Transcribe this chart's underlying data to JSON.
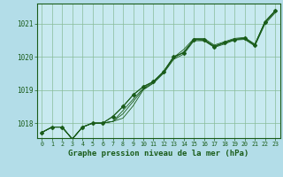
{
  "title": "Graphe pression niveau de la mer (hPa)",
  "bg_color": "#b3dde8",
  "plot_bg_color": "#c8eaf0",
  "line_color": "#1a5c1a",
  "grid_color": "#88bb99",
  "text_color": "#1a5c1a",
  "xlim": [
    -0.5,
    23.5
  ],
  "ylim": [
    1017.55,
    1021.6
  ],
  "yticks": [
    1018,
    1019,
    1020,
    1021
  ],
  "xticks": [
    0,
    1,
    2,
    3,
    4,
    5,
    6,
    7,
    8,
    9,
    10,
    11,
    12,
    13,
    14,
    15,
    16,
    17,
    18,
    19,
    20,
    21,
    22,
    23
  ],
  "series1": [
    1017.72,
    1017.88,
    1017.88,
    1017.52,
    1017.88,
    1018.0,
    1018.0,
    1018.2,
    1018.5,
    1018.85,
    1019.1,
    1019.25,
    1019.55,
    1020.0,
    1020.12,
    1020.52,
    1020.5,
    1020.3,
    1020.42,
    1020.52,
    1020.55,
    1020.35,
    1021.05,
    1021.38
  ],
  "series2": [
    1017.72,
    1017.88,
    1017.88,
    1017.52,
    1017.88,
    1018.0,
    1018.0,
    1018.05,
    1018.15,
    1018.52,
    1019.0,
    1019.2,
    1019.5,
    1019.92,
    1020.08,
    1020.48,
    1020.48,
    1020.28,
    1020.38,
    1020.5,
    1020.52,
    1020.32,
    1020.98,
    1021.32
  ],
  "series3": [
    1017.72,
    1017.88,
    1017.88,
    1017.52,
    1017.88,
    1018.0,
    1018.0,
    1018.05,
    1018.28,
    1018.65,
    1019.02,
    1019.22,
    1019.52,
    1019.95,
    1020.15,
    1020.52,
    1020.52,
    1020.32,
    1020.42,
    1020.52,
    1020.55,
    1020.35,
    1021.02,
    1021.35
  ],
  "series4": [
    1017.72,
    1017.88,
    1017.88,
    1017.52,
    1017.88,
    1018.0,
    1018.0,
    1018.05,
    1018.38,
    1018.72,
    1019.05,
    1019.25,
    1019.55,
    1019.98,
    1020.22,
    1020.55,
    1020.55,
    1020.35,
    1020.45,
    1020.55,
    1020.58,
    1020.38,
    1021.05,
    1021.38
  ],
  "marker_series": [
    1017.72,
    1017.88,
    1017.88,
    1017.52,
    1017.88,
    1018.0,
    1018.0,
    1018.2,
    1018.5,
    1018.85,
    1019.1,
    1019.25,
    1019.55,
    1020.0,
    1020.12,
    1020.52,
    1020.5,
    1020.3,
    1020.42,
    1020.52,
    1020.55,
    1020.35,
    1021.05,
    1021.38
  ]
}
